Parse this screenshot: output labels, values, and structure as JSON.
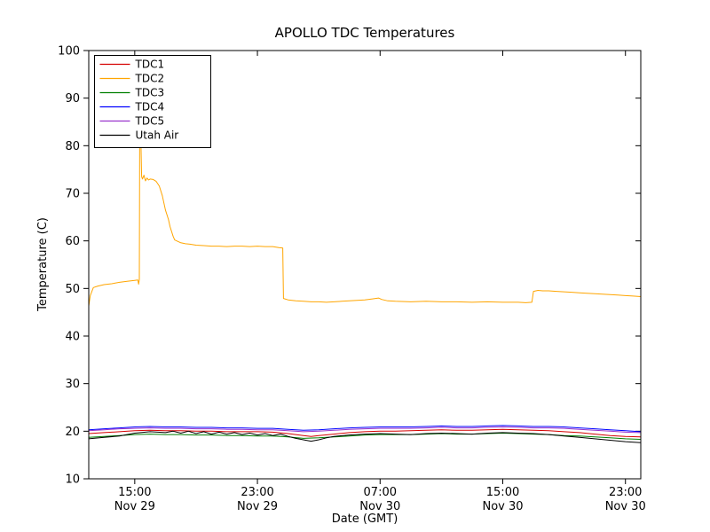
{
  "chart_data": {
    "type": "line",
    "title": "APOLLO TDC Temperatures",
    "xlabel": "Date (GMT)",
    "ylabel": "Temperature (C)",
    "xlim": [
      12,
      48
    ],
    "ylim": [
      10,
      100
    ],
    "grid": false,
    "legend_position": "upper-left",
    "yticks": [
      10,
      20,
      30,
      40,
      50,
      60,
      70,
      80,
      90,
      100
    ],
    "xticks": [
      {
        "t": 15,
        "line1": "15:00",
        "line2": "Nov 29"
      },
      {
        "t": 23,
        "line1": "23:00",
        "line2": "Nov 29"
      },
      {
        "t": 31,
        "line1": "07:00",
        "line2": "Nov 30"
      },
      {
        "t": 39,
        "line1": "15:00",
        "line2": "Nov 30"
      },
      {
        "t": 47,
        "line1": "23:00",
        "line2": "Nov 30"
      }
    ],
    "x_units": "hours since Nov 29 00:00 GMT",
    "series": [
      {
        "name": "TDC1",
        "color": "#d40000",
        "points": [
          [
            12,
            19.5
          ],
          [
            13,
            19.7
          ],
          [
            14,
            19.9
          ],
          [
            15,
            20.1
          ],
          [
            16,
            20.2
          ],
          [
            17,
            20.1
          ],
          [
            18,
            20.1
          ],
          [
            19,
            20.0
          ],
          [
            20,
            20.0
          ],
          [
            21,
            19.9
          ],
          [
            22,
            19.9
          ],
          [
            23,
            19.9
          ],
          [
            24,
            19.8
          ],
          [
            25,
            19.5
          ],
          [
            26,
            19.1
          ],
          [
            26.5,
            18.9
          ],
          [
            27,
            19.1
          ],
          [
            28,
            19.4
          ],
          [
            29,
            19.7
          ],
          [
            30,
            19.9
          ],
          [
            31,
            20.0
          ],
          [
            32,
            20.0
          ],
          [
            33,
            20.1
          ],
          [
            34,
            20.2
          ],
          [
            35,
            20.3
          ],
          [
            36,
            20.2
          ],
          [
            37,
            20.2
          ],
          [
            38,
            20.3
          ],
          [
            39,
            20.4
          ],
          [
            40,
            20.3
          ],
          [
            41,
            20.2
          ],
          [
            42,
            20.1
          ],
          [
            43,
            19.9
          ],
          [
            44,
            19.7
          ],
          [
            45,
            19.4
          ],
          [
            46,
            19.1
          ],
          [
            47,
            18.9
          ],
          [
            48,
            18.8
          ]
        ]
      },
      {
        "name": "TDC2",
        "color": "#ffa500",
        "points": [
          [
            12,
            46.3
          ],
          [
            12.1,
            48.5
          ],
          [
            12.3,
            50.2
          ],
          [
            12.6,
            50.5
          ],
          [
            13,
            50.8
          ],
          [
            13.5,
            51.0
          ],
          [
            14,
            51.3
          ],
          [
            14.5,
            51.5
          ],
          [
            15,
            51.7
          ],
          [
            15.2,
            51.8
          ],
          [
            15.25,
            50.9
          ],
          [
            15.3,
            51.9
          ],
          [
            15.32,
            82.0
          ],
          [
            15.4,
            81.5
          ],
          [
            15.45,
            73.5
          ],
          [
            15.5,
            73.0
          ],
          [
            15.6,
            73.8
          ],
          [
            15.7,
            72.6
          ],
          [
            15.8,
            73.2
          ],
          [
            15.9,
            72.8
          ],
          [
            16,
            73.0
          ],
          [
            16.2,
            72.9
          ],
          [
            16.4,
            72.5
          ],
          [
            16.6,
            71.5
          ],
          [
            16.8,
            69.5
          ],
          [
            17,
            66.5
          ],
          [
            17.2,
            64.5
          ],
          [
            17.3,
            63.0
          ],
          [
            17.5,
            61.0
          ],
          [
            17.6,
            60.2
          ],
          [
            17.8,
            59.9
          ],
          [
            18,
            59.6
          ],
          [
            18.3,
            59.4
          ],
          [
            18.6,
            59.3
          ],
          [
            19,
            59.1
          ],
          [
            19.5,
            59.0
          ],
          [
            20,
            58.9
          ],
          [
            20.5,
            58.9
          ],
          [
            21,
            58.8
          ],
          [
            21.5,
            58.9
          ],
          [
            22,
            58.9
          ],
          [
            22.5,
            58.8
          ],
          [
            23,
            58.9
          ],
          [
            23.5,
            58.8
          ],
          [
            24,
            58.8
          ],
          [
            24.4,
            58.6
          ],
          [
            24.65,
            58.5
          ],
          [
            24.7,
            47.9
          ],
          [
            25,
            47.6
          ],
          [
            25.5,
            47.4
          ],
          [
            26,
            47.3
          ],
          [
            26.5,
            47.2
          ],
          [
            27,
            47.2
          ],
          [
            27.5,
            47.1
          ],
          [
            28,
            47.2
          ],
          [
            28.5,
            47.3
          ],
          [
            29,
            47.4
          ],
          [
            29.5,
            47.5
          ],
          [
            30,
            47.6
          ],
          [
            30.5,
            47.8
          ],
          [
            30.9,
            48.0
          ],
          [
            31.1,
            47.7
          ],
          [
            31.5,
            47.4
          ],
          [
            32,
            47.3
          ],
          [
            33,
            47.2
          ],
          [
            34,
            47.3
          ],
          [
            35,
            47.2
          ],
          [
            36,
            47.2
          ],
          [
            37,
            47.1
          ],
          [
            38,
            47.2
          ],
          [
            39,
            47.1
          ],
          [
            40,
            47.1
          ],
          [
            40.5,
            47.0
          ],
          [
            40.9,
            47.1
          ],
          [
            41,
            49.4
          ],
          [
            41.3,
            49.6
          ],
          [
            41.6,
            49.5
          ],
          [
            42,
            49.5
          ],
          [
            42.5,
            49.4
          ],
          [
            43,
            49.3
          ],
          [
            43.5,
            49.2
          ],
          [
            44,
            49.1
          ],
          [
            44.5,
            49.0
          ],
          [
            45,
            48.9
          ],
          [
            45.5,
            48.8
          ],
          [
            46,
            48.7
          ],
          [
            46.5,
            48.6
          ],
          [
            47,
            48.5
          ],
          [
            47.5,
            48.4
          ],
          [
            48,
            48.3
          ]
        ]
      },
      {
        "name": "TDC3",
        "color": "#007f00",
        "points": [
          [
            12,
            18.7
          ],
          [
            13,
            18.9
          ],
          [
            14,
            19.1
          ],
          [
            15,
            19.3
          ],
          [
            16,
            19.4
          ],
          [
            17,
            19.3
          ],
          [
            18,
            19.3
          ],
          [
            19,
            19.2
          ],
          [
            20,
            19.2
          ],
          [
            21,
            19.1
          ],
          [
            22,
            19.1
          ],
          [
            23,
            19.0
          ],
          [
            24,
            19.0
          ],
          [
            25,
            18.8
          ],
          [
            26,
            18.5
          ],
          [
            27,
            18.6
          ],
          [
            28,
            18.8
          ],
          [
            29,
            19.0
          ],
          [
            30,
            19.2
          ],
          [
            31,
            19.3
          ],
          [
            32,
            19.3
          ],
          [
            33,
            19.3
          ],
          [
            34,
            19.4
          ],
          [
            35,
            19.5
          ],
          [
            36,
            19.4
          ],
          [
            37,
            19.4
          ],
          [
            38,
            19.5
          ],
          [
            39,
            19.6
          ],
          [
            40,
            19.5
          ],
          [
            41,
            19.4
          ],
          [
            42,
            19.3
          ],
          [
            43,
            19.1
          ],
          [
            44,
            19.0
          ],
          [
            45,
            18.8
          ],
          [
            46,
            18.6
          ],
          [
            47,
            18.4
          ],
          [
            48,
            18.3
          ]
        ]
      },
      {
        "name": "TDC4",
        "color": "#0000ff",
        "points": [
          [
            12,
            20.3
          ],
          [
            13,
            20.5
          ],
          [
            14,
            20.7
          ],
          [
            15,
            20.9
          ],
          [
            16,
            21.0
          ],
          [
            17,
            20.9
          ],
          [
            18,
            20.9
          ],
          [
            19,
            20.8
          ],
          [
            20,
            20.8
          ],
          [
            21,
            20.7
          ],
          [
            22,
            20.7
          ],
          [
            23,
            20.6
          ],
          [
            24,
            20.6
          ],
          [
            25,
            20.4
          ],
          [
            26,
            20.2
          ],
          [
            27,
            20.3
          ],
          [
            28,
            20.5
          ],
          [
            29,
            20.7
          ],
          [
            30,
            20.8
          ],
          [
            31,
            20.9
          ],
          [
            32,
            20.9
          ],
          [
            33,
            20.9
          ],
          [
            34,
            21.0
          ],
          [
            35,
            21.1
          ],
          [
            36,
            21.0
          ],
          [
            37,
            21.0
          ],
          [
            38,
            21.1
          ],
          [
            39,
            21.2
          ],
          [
            40,
            21.1
          ],
          [
            41,
            21.0
          ],
          [
            42,
            21.0
          ],
          [
            43,
            20.9
          ],
          [
            44,
            20.7
          ],
          [
            45,
            20.5
          ],
          [
            46,
            20.3
          ],
          [
            47,
            20.1
          ],
          [
            48,
            19.9
          ]
        ]
      },
      {
        "name": "TDC5",
        "color": "#9933cc",
        "points": [
          [
            12,
            20.1
          ],
          [
            13,
            20.3
          ],
          [
            14,
            20.5
          ],
          [
            15,
            20.6
          ],
          [
            16,
            20.7
          ],
          [
            17,
            20.6
          ],
          [
            18,
            20.6
          ],
          [
            19,
            20.5
          ],
          [
            20,
            20.5
          ],
          [
            21,
            20.4
          ],
          [
            22,
            20.4
          ],
          [
            23,
            20.3
          ],
          [
            24,
            20.3
          ],
          [
            25,
            20.1
          ],
          [
            26,
            19.9
          ],
          [
            27,
            20.0
          ],
          [
            28,
            20.2
          ],
          [
            29,
            20.4
          ],
          [
            30,
            20.5
          ],
          [
            31,
            20.6
          ],
          [
            32,
            20.6
          ],
          [
            33,
            20.6
          ],
          [
            34,
            20.7
          ],
          [
            35,
            20.8
          ],
          [
            36,
            20.7
          ],
          [
            37,
            20.7
          ],
          [
            38,
            20.8
          ],
          [
            39,
            20.9
          ],
          [
            40,
            20.8
          ],
          [
            41,
            20.7
          ],
          [
            42,
            20.7
          ],
          [
            43,
            20.6
          ],
          [
            44,
            20.4
          ],
          [
            45,
            20.2
          ],
          [
            46,
            20.0
          ],
          [
            47,
            19.8
          ],
          [
            48,
            19.7
          ]
        ]
      },
      {
        "name": "Utah Air",
        "color": "#000000",
        "points": [
          [
            12,
            18.4
          ],
          [
            13,
            18.7
          ],
          [
            14,
            19.0
          ],
          [
            15,
            19.6
          ],
          [
            16,
            19.9
          ],
          [
            17,
            19.7
          ],
          [
            17.5,
            20.0
          ],
          [
            18,
            19.6
          ],
          [
            18.5,
            20.0
          ],
          [
            19,
            19.5
          ],
          [
            19.5,
            19.9
          ],
          [
            20,
            19.4
          ],
          [
            20.5,
            19.8
          ],
          [
            21,
            19.4
          ],
          [
            21.5,
            19.7
          ],
          [
            22,
            19.3
          ],
          [
            22.5,
            19.6
          ],
          [
            23,
            19.2
          ],
          [
            23.5,
            19.5
          ],
          [
            24,
            19.1
          ],
          [
            24.5,
            19.4
          ],
          [
            25,
            18.9
          ],
          [
            25.5,
            18.5
          ],
          [
            26,
            18.2
          ],
          [
            26.5,
            17.9
          ],
          [
            27,
            18.2
          ],
          [
            27.5,
            18.6
          ],
          [
            28,
            18.9
          ],
          [
            29,
            19.2
          ],
          [
            30,
            19.4
          ],
          [
            31,
            19.5
          ],
          [
            32,
            19.4
          ],
          [
            33,
            19.3
          ],
          [
            34,
            19.5
          ],
          [
            35,
            19.6
          ],
          [
            36,
            19.5
          ],
          [
            37,
            19.4
          ],
          [
            38,
            19.6
          ],
          [
            39,
            19.7
          ],
          [
            40,
            19.6
          ],
          [
            41,
            19.5
          ],
          [
            42,
            19.3
          ],
          [
            43,
            19.0
          ],
          [
            44,
            18.7
          ],
          [
            45,
            18.4
          ],
          [
            46,
            18.1
          ],
          [
            47,
            17.8
          ],
          [
            48,
            17.6
          ]
        ]
      }
    ]
  }
}
